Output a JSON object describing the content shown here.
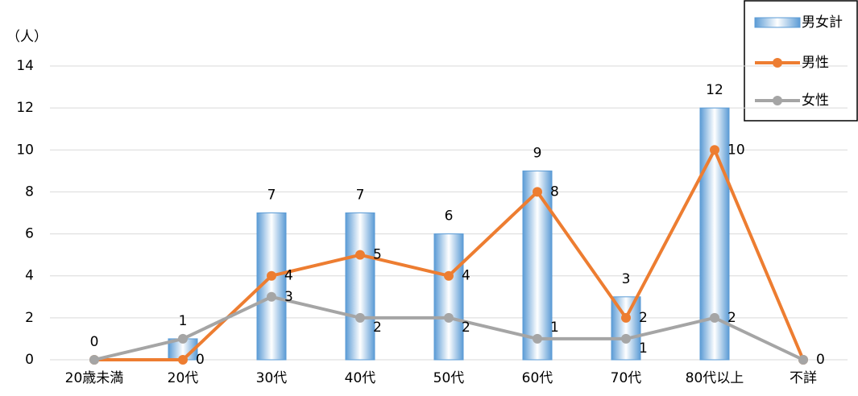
{
  "chart_data": {
    "type": "bar-line",
    "y_label": "（人）",
    "categories": [
      "20歳未満",
      "20代",
      "30代",
      "40代",
      "50代",
      "60代",
      "70代",
      "80代以上",
      "不詳"
    ],
    "series": [
      {
        "name": "男女計",
        "type": "bar",
        "color": "#5b9bd5",
        "values": [
          0,
          1,
          7,
          7,
          6,
          9,
          3,
          12,
          0
        ]
      },
      {
        "name": "男性",
        "type": "line",
        "color": "#ed7d31",
        "values": [
          0,
          0,
          4,
          5,
          4,
          8,
          2,
          10,
          0
        ]
      },
      {
        "name": "女性",
        "type": "line",
        "color": "#a5a5a5",
        "values": [
          0,
          1,
          3,
          2,
          2,
          1,
          1,
          2,
          0
        ]
      }
    ],
    "ylim": [
      0,
      14
    ],
    "yticks": [
      0,
      2,
      4,
      6,
      8,
      10,
      12,
      14
    ],
    "grid": true
  }
}
